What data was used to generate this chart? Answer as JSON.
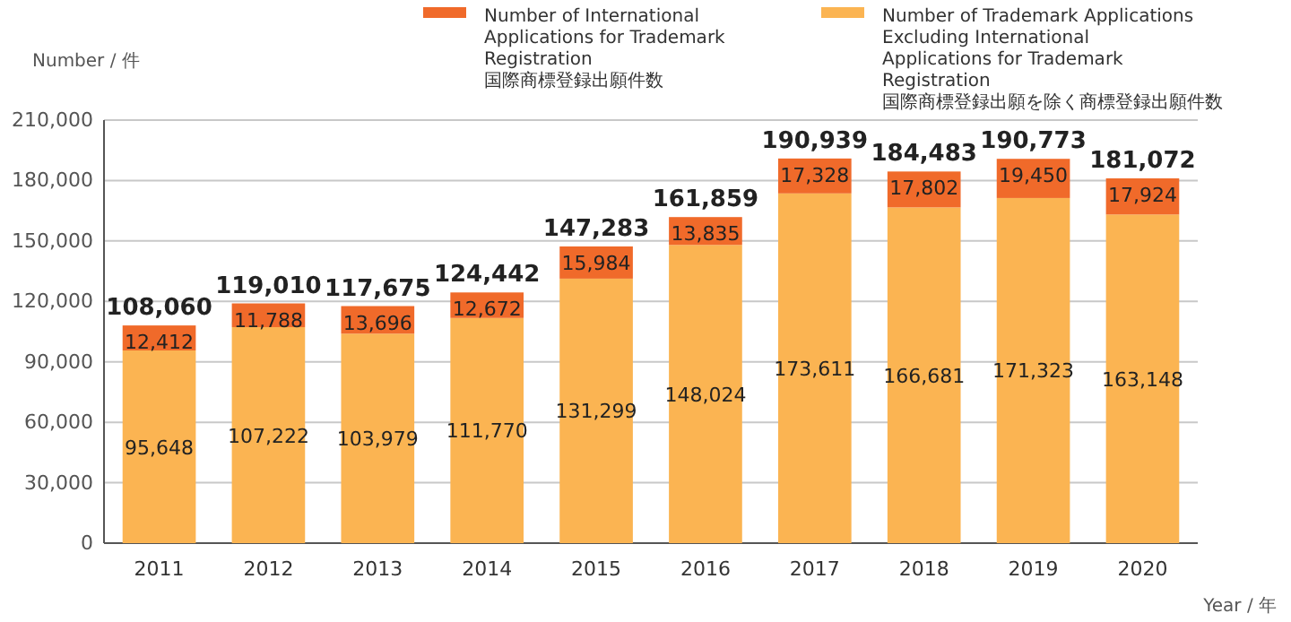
{
  "chart_data": {
    "type": "bar",
    "stacked": true,
    "ylabel": "Number / 件",
    "xlabel": "Year / 年",
    "categories": [
      "2011",
      "2012",
      "2013",
      "2014",
      "2015",
      "2016",
      "2017",
      "2018",
      "2019",
      "2020"
    ],
    "series": [
      {
        "name": "Number of Trademark Applications Excluding International Applications for Trademark Registration\n国際商標登録出願を除く商標登録出願件数",
        "color": "#fbb452",
        "values": [
          95648,
          107222,
          103979,
          111770,
          131299,
          148024,
          173611,
          166681,
          171323,
          163148
        ],
        "value_labels": [
          "95,648",
          "107,222",
          "103,979",
          "111,770",
          "131,299",
          "148,024",
          "173,611",
          "166,681",
          "171,323",
          "163,148"
        ]
      },
      {
        "name": "Number of International Applications for Trademark Registration\n国際商標登録出願件数",
        "color": "#f06a2a",
        "values": [
          12412,
          11788,
          13696,
          12672,
          15984,
          13835,
          17328,
          17802,
          19450,
          17924
        ],
        "value_labels": [
          "12,412",
          "11,788",
          "13,696",
          "12,672",
          "15,984",
          "13,835",
          "17,328",
          "17,802",
          "19,450",
          "17,924"
        ]
      }
    ],
    "totals": [
      "108,060",
      "119,010",
      "117,675",
      "124,442",
      "147,283",
      "161,859",
      "190,939",
      "184,483",
      "190,773",
      "181,072"
    ],
    "ylim": [
      0,
      210000
    ],
    "yticks": [
      0,
      {
        "value": 30000,
        "label": "30,000"
      },
      {
        "value": 60000,
        "label": "60,000"
      },
      {
        "value": 90000,
        "label": "90,000"
      },
      {
        "value": 120000,
        "label": "120,000"
      },
      {
        "value": 150000,
        "label": "150,000"
      },
      {
        "value": 180000,
        "label": "180,000"
      },
      {
        "value": 210000,
        "label": "210,000"
      }
    ],
    "grid": "y",
    "legend": "top right"
  }
}
